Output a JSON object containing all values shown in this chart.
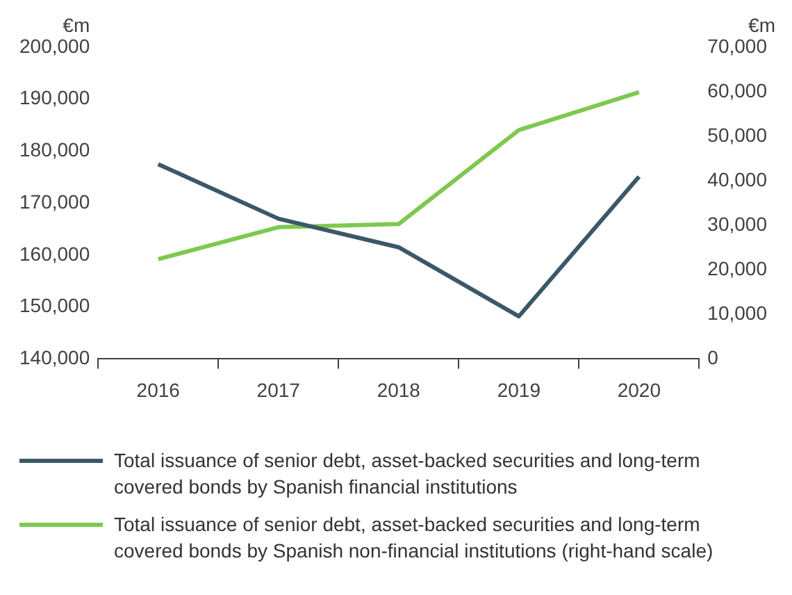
{
  "chart_data": {
    "type": "line",
    "ylabel": "€m",
    "y2label": "€m",
    "categories": [
      "2016",
      "2017",
      "2018",
      "2019",
      "2020"
    ],
    "series": [
      {
        "name": "Total issuance of senior debt, asset-backed securities and long-term covered bonds by Spanish financial institutions",
        "color": "#3b5868",
        "values": [
          177500,
          167000,
          161500,
          148200,
          175100
        ]
      },
      {
        "name": "Total issuance of senior debt, asset-backed securities and long-term covered bonds by Spanish non-financial institutions (right-hand scale)",
        "color": "#7ec850",
        "values": [
          22400,
          29600,
          30300,
          51400,
          59900
        ],
        "axis": "y2"
      }
    ],
    "ylim": [
      140000,
      200000
    ],
    "yticks": [
      {
        "value": 140000,
        "label": "140,000"
      },
      {
        "value": 150000,
        "label": "150,000"
      },
      {
        "value": 160000,
        "label": "160,000"
      },
      {
        "value": 170000,
        "label": "170,000"
      },
      {
        "value": 180000,
        "label": "180,000"
      },
      {
        "value": 190000,
        "label": "190,000"
      },
      {
        "value": 200000,
        "label": "200,000"
      }
    ],
    "y2lim": [
      0,
      70000
    ],
    "y2ticks": [
      0,
      {
        "value": 10000,
        "label": "10,000"
      },
      {
        "value": 20000,
        "label": "20,000"
      },
      {
        "value": 30000,
        "label": "30,000"
      },
      {
        "value": 40000,
        "label": "40,000"
      },
      {
        "value": 50000,
        "label": "50,000"
      },
      {
        "value": 60000,
        "label": "60,000"
      },
      {
        "value": 70000,
        "label": "70,000"
      }
    ],
    "grid": false,
    "legend": "bottom",
    "marker": "none",
    "line_style": "solid"
  }
}
